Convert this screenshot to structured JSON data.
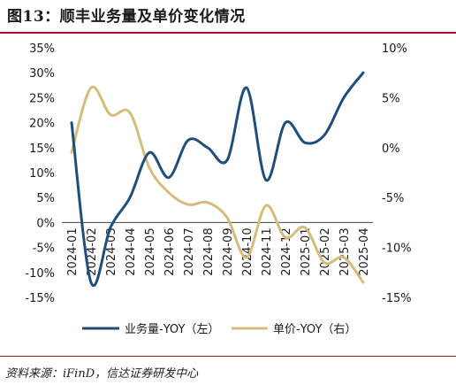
{
  "header": {
    "title": "图13：顺丰业务量及单价变化情况"
  },
  "footer": {
    "source": "资料来源：iFinD，信达证券研发中心"
  },
  "colors": {
    "volume": "#1f4e79",
    "price": "#d4bd7a",
    "accent_rule": "#b0122b"
  },
  "chart_data": {
    "type": "line",
    "x": [
      "2024-01",
      "2024-02",
      "2024-03",
      "2024-04",
      "2024-05",
      "2024-06",
      "2024-07",
      "2024-08",
      "2024-09",
      "2024-10",
      "2024-11",
      "2024-12",
      "2025-01",
      "2025-02",
      "2025-03",
      "2025-04"
    ],
    "series": [
      {
        "name": "业务量-YOY（左）",
        "axis": "left",
        "values": [
          20,
          -12,
          -1,
          5,
          14,
          9,
          16.5,
          15,
          12.5,
          27,
          8.5,
          20,
          16,
          17.5,
          25,
          30
        ]
      },
      {
        "name": "单价-YOY（右）",
        "axis": "right",
        "values": [
          -0.5,
          6,
          3.3,
          3.5,
          -2,
          -4.5,
          -5.7,
          -5.5,
          -7,
          -11,
          -5.8,
          -9,
          -8,
          -11.5,
          -11,
          -13.5
        ]
      }
    ],
    "left_axis": {
      "min": -15,
      "max": 35,
      "step": 5,
      "format": "percent"
    },
    "right_axis": {
      "min": -15,
      "max": 10,
      "step": 5,
      "format": "percent"
    },
    "grid": false,
    "legend_position": "bottom"
  }
}
